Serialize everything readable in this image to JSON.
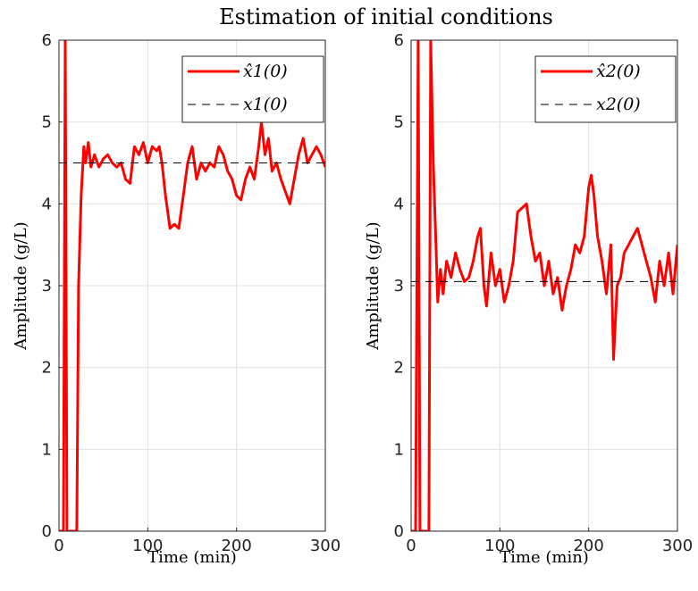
{
  "figure": {
    "title": "Estimation of initial conditions"
  },
  "chart_data": [
    {
      "type": "line",
      "title": "",
      "xlabel": "Time (min)",
      "ylabel": "Amplitude (g/L)",
      "xlim": [
        0,
        300
      ],
      "ylim": [
        0,
        6
      ],
      "xticks": [
        0,
        100,
        200,
        300
      ],
      "yticks": [
        0,
        1,
        2,
        3,
        4,
        5,
        6
      ],
      "grid": true,
      "legend_position": "top-right",
      "series": [
        {
          "name": "x̂1(0)",
          "style": "solid",
          "color": "#ff0000",
          "x": [
            0,
            5,
            7,
            9,
            20,
            22,
            25,
            28,
            30,
            33,
            36,
            40,
            45,
            50,
            55,
            60,
            65,
            70,
            75,
            80,
            85,
            90,
            95,
            100,
            105,
            110,
            113,
            116,
            120,
            125,
            130,
            135,
            140,
            145,
            150,
            155,
            160,
            165,
            170,
            175,
            180,
            185,
            190,
            195,
            200,
            205,
            210,
            215,
            220,
            225,
            228,
            232,
            236,
            240,
            245,
            250,
            255,
            260,
            265,
            270,
            275,
            280,
            285,
            290,
            295,
            300
          ],
          "y": [
            0,
            0,
            6,
            0,
            0,
            3.0,
            4.1,
            4.7,
            4.5,
            4.75,
            4.45,
            4.6,
            4.45,
            4.55,
            4.6,
            4.5,
            4.45,
            4.5,
            4.3,
            4.25,
            4.7,
            4.6,
            4.75,
            4.5,
            4.7,
            4.65,
            4.7,
            4.5,
            4.1,
            3.7,
            3.75,
            3.7,
            4.1,
            4.5,
            4.7,
            4.3,
            4.5,
            4.4,
            4.5,
            4.45,
            4.7,
            4.6,
            4.4,
            4.3,
            4.1,
            4.05,
            4.3,
            4.45,
            4.3,
            4.7,
            5.0,
            4.6,
            4.8,
            4.4,
            4.5,
            4.3,
            4.15,
            4.0,
            4.3,
            4.6,
            4.8,
            4.5,
            4.6,
            4.7,
            4.6,
            4.45
          ]
        },
        {
          "name": "x1(0)",
          "style": "dashed",
          "color": "#000000",
          "x": [
            0,
            300
          ],
          "y": [
            4.5,
            4.5
          ]
        }
      ]
    },
    {
      "type": "line",
      "title": "",
      "xlabel": "Time (min)",
      "ylabel": "Amplitude (g/L)",
      "xlim": [
        0,
        300
      ],
      "ylim": [
        0,
        6
      ],
      "xticks": [
        0,
        100,
        200,
        300
      ],
      "yticks": [
        0,
        1,
        2,
        3,
        4,
        5,
        6
      ],
      "grid": true,
      "legend_position": "top-right",
      "series": [
        {
          "name": "x̂2(0)",
          "style": "solid",
          "color": "#ff0000",
          "x": [
            0,
            5,
            8,
            10,
            20,
            22,
            25,
            28,
            30,
            33,
            36,
            40,
            45,
            50,
            55,
            60,
            65,
            70,
            75,
            78,
            82,
            85,
            90,
            95,
            100,
            105,
            110,
            115,
            120,
            125,
            130,
            135,
            140,
            145,
            150,
            155,
            160,
            165,
            170,
            175,
            180,
            185,
            190,
            195,
            200,
            203,
            206,
            210,
            215,
            220,
            225,
            228,
            232,
            236,
            240,
            245,
            250,
            255,
            260,
            265,
            270,
            275,
            280,
            285,
            290,
            295,
            300
          ],
          "y": [
            0,
            0,
            6,
            0,
            0,
            6.0,
            4.5,
            3.5,
            2.8,
            3.2,
            2.9,
            3.3,
            3.1,
            3.4,
            3.2,
            3.05,
            3.1,
            3.3,
            3.6,
            3.7,
            3.0,
            2.75,
            3.4,
            3.0,
            3.2,
            2.8,
            3.0,
            3.3,
            3.9,
            3.95,
            4.0,
            3.6,
            3.3,
            3.4,
            3.0,
            3.3,
            2.9,
            3.1,
            2.7,
            3.0,
            3.2,
            3.5,
            3.4,
            3.6,
            4.2,
            4.35,
            4.1,
            3.6,
            3.3,
            2.9,
            3.5,
            2.1,
            3.0,
            3.1,
            3.4,
            3.5,
            3.6,
            3.7,
            3.5,
            3.3,
            3.1,
            2.8,
            3.3,
            3.0,
            3.4,
            2.9,
            3.5
          ]
        },
        {
          "name": "x2(0)",
          "style": "dashed",
          "color": "#000000",
          "x": [
            0,
            300
          ],
          "y": [
            3.05,
            3.05
          ]
        }
      ]
    }
  ]
}
